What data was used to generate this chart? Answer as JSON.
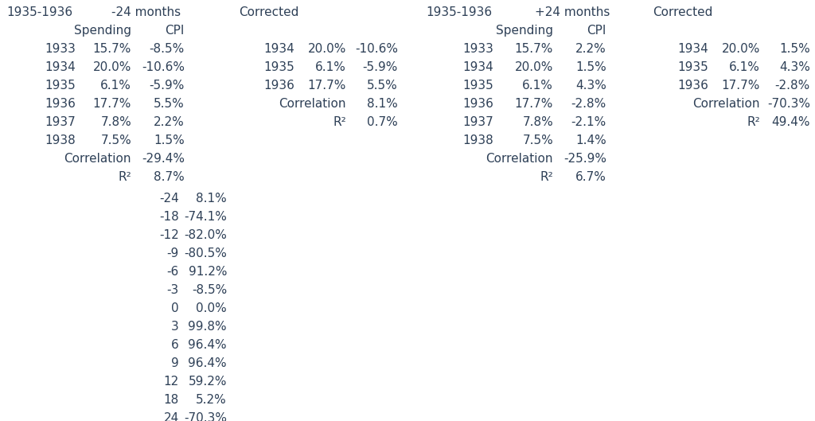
{
  "bg_color": "#ffffff",
  "text_color": "#2e4057",
  "font_size": 11.0,
  "font_family": "DejaVu Sans",
  "section1_header": "1935-1936",
  "section1_subheader": "-24 months",
  "section1_col1_header": "Spending",
  "section1_col2_header": "CPI",
  "section1_rows": [
    [
      "1933",
      "15.7%",
      "-8.5%"
    ],
    [
      "1934",
      "20.0%",
      "-10.6%"
    ],
    [
      "1935",
      "6.1%",
      "-5.9%"
    ],
    [
      "1936",
      "17.7%",
      "5.5%"
    ],
    [
      "1937",
      "7.8%",
      "2.2%"
    ],
    [
      "1938",
      "7.5%",
      "1.5%"
    ]
  ],
  "section1_corr_label": "Correlation",
  "section1_corr_val": "-29.4%",
  "section1_r2_label": "R²",
  "section1_r2_val": "8.7%",
  "corrected1_header": "Corrected",
  "corrected1_rows": [
    [
      "1934",
      "20.0%",
      "-10.6%"
    ],
    [
      "1935",
      "6.1%",
      "-5.9%"
    ],
    [
      "1936",
      "17.7%",
      "5.5%"
    ]
  ],
  "corrected1_corr_label": "Correlation",
  "corrected1_corr_val": "8.1%",
  "corrected1_r2_label": "R²",
  "corrected1_r2_val": "0.7%",
  "lag_rows": [
    [
      "-24",
      "8.1%"
    ],
    [
      "-18",
      "-74.1%"
    ],
    [
      "-12",
      "-82.0%"
    ],
    [
      "-9",
      "-80.5%"
    ],
    [
      "-6",
      "91.2%"
    ],
    [
      "-3",
      "-8.5%"
    ],
    [
      "0",
      "0.0%"
    ],
    [
      "3",
      "99.8%"
    ],
    [
      "6",
      "96.4%"
    ],
    [
      "9",
      "96.4%"
    ],
    [
      "12",
      "59.2%"
    ],
    [
      "18",
      "5.2%"
    ],
    [
      "24",
      "-70.3%"
    ]
  ],
  "section2_header": "1935-1936",
  "section2_subheader": "+24 months",
  "section2_col1_header": "Spending",
  "section2_col2_header": "CPI",
  "section2_rows": [
    [
      "1933",
      "15.7%",
      "2.2%"
    ],
    [
      "1934",
      "20.0%",
      "1.5%"
    ],
    [
      "1935",
      "6.1%",
      "4.3%"
    ],
    [
      "1936",
      "17.7%",
      "-2.8%"
    ],
    [
      "1937",
      "7.8%",
      "-2.1%"
    ],
    [
      "1938",
      "7.5%",
      "1.4%"
    ]
  ],
  "section2_corr_label": "Correlation",
  "section2_corr_val": "-25.9%",
  "section2_r2_label": "R²",
  "section2_r2_val": "6.7%",
  "corrected2_header": "Corrected",
  "corrected2_rows": [
    [
      "1934",
      "20.0%",
      "1.5%"
    ],
    [
      "1935",
      "6.1%",
      "4.3%"
    ],
    [
      "1936",
      "17.7%",
      "-2.8%"
    ]
  ],
  "corrected2_corr_label": "Correlation",
  "corrected2_corr_val": "-70.3%",
  "corrected2_r2_label": "R²",
  "corrected2_r2_val": "49.4%"
}
